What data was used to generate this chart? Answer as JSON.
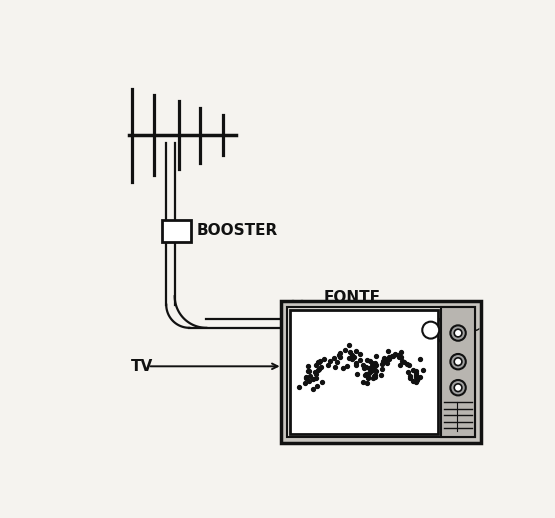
{
  "bg_color": "#f5f3ef",
  "line_color": "#111111",
  "label_booster": "BOOSTER",
  "label_fonte": "FONTE",
  "label_tv": "TV",
  "label_tilde": "~",
  "figsize": [
    5.55,
    5.18
  ],
  "dpi": 100
}
